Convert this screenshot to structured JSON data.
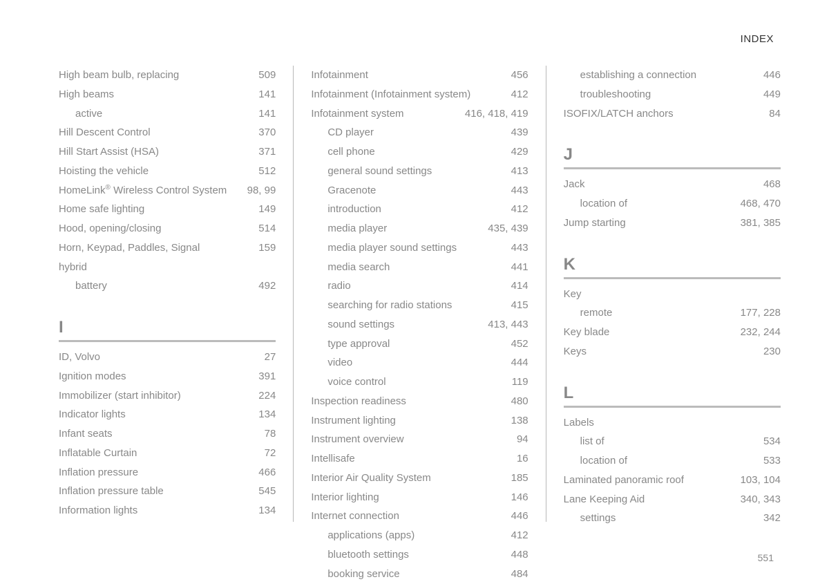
{
  "header": {
    "right_label": "INDEX"
  },
  "page_number": "551",
  "columns": [
    {
      "blocks": [
        {
          "entries": [
            {
              "label": "High beam bulb, replacing",
              "pages": "509"
            },
            {
              "label": "High beams",
              "pages": "141"
            },
            {
              "label": "active",
              "pages": "141",
              "sub": true
            },
            {
              "label": "Hill Descent Control",
              "pages": "370"
            },
            {
              "label": "Hill Start Assist (HSA)",
              "pages": "371"
            },
            {
              "label": "Hoisting the vehicle",
              "pages": "512"
            },
            {
              "label": "HomeLink® Wireless Control System",
              "pages": "98, 99",
              "reg": true
            },
            {
              "label": "Home safe lighting",
              "pages": "149"
            },
            {
              "label": "Hood, opening/closing",
              "pages": "514"
            },
            {
              "label": "Horn, Keypad, Paddles, Signal",
              "pages": "159"
            },
            {
              "label": "hybrid",
              "pages": ""
            },
            {
              "label": "battery",
              "pages": "492",
              "sub": true
            }
          ]
        },
        {
          "letter": "I",
          "entries": [
            {
              "label": "ID, Volvo",
              "pages": "27"
            },
            {
              "label": "Ignition modes",
              "pages": "391"
            },
            {
              "label": "Immobilizer (start inhibitor)",
              "pages": "224"
            },
            {
              "label": "Indicator lights",
              "pages": "134"
            },
            {
              "label": "Infant seats",
              "pages": "78"
            },
            {
              "label": "Inflatable Curtain",
              "pages": "72"
            },
            {
              "label": "Inflation pressure",
              "pages": "466"
            },
            {
              "label": "Inflation pressure table",
              "pages": "545"
            },
            {
              "label": "Information lights",
              "pages": "134"
            }
          ]
        }
      ]
    },
    {
      "blocks": [
        {
          "entries": [
            {
              "label": "Infotainment",
              "pages": "456"
            },
            {
              "label": "Infotainment (Infotainment system)",
              "pages": "412"
            },
            {
              "label": "Infotainment system",
              "pages": "416, 418, 419"
            },
            {
              "label": "CD player",
              "pages": "439",
              "sub": true
            },
            {
              "label": "cell phone",
              "pages": "429",
              "sub": true
            },
            {
              "label": "general sound settings",
              "pages": "413",
              "sub": true
            },
            {
              "label": "Gracenote",
              "pages": "443",
              "sub": true
            },
            {
              "label": "introduction",
              "pages": "412",
              "sub": true
            },
            {
              "label": "media player",
              "pages": "435, 439",
              "sub": true
            },
            {
              "label": "media player sound settings",
              "pages": "443",
              "sub": true
            },
            {
              "label": "media search",
              "pages": "441",
              "sub": true
            },
            {
              "label": "radio",
              "pages": "414",
              "sub": true
            },
            {
              "label": "searching for radio stations",
              "pages": "415",
              "sub": true
            },
            {
              "label": "sound settings",
              "pages": "413, 443",
              "sub": true
            },
            {
              "label": "type approval",
              "pages": "452",
              "sub": true
            },
            {
              "label": "video",
              "pages": "444",
              "sub": true
            },
            {
              "label": "voice control",
              "pages": "119",
              "sub": true
            },
            {
              "label": "Inspection readiness",
              "pages": "480"
            },
            {
              "label": "Instrument lighting",
              "pages": "138"
            },
            {
              "label": "Instrument overview",
              "pages": "94"
            },
            {
              "label": "Intellisafe",
              "pages": "16"
            },
            {
              "label": "Interior Air Quality System",
              "pages": "185"
            },
            {
              "label": "Interior lighting",
              "pages": "146"
            },
            {
              "label": "Internet connection",
              "pages": "446"
            },
            {
              "label": "applications (apps)",
              "pages": "412",
              "sub": true
            },
            {
              "label": "bluetooth settings",
              "pages": "448",
              "sub": true
            },
            {
              "label": "booking service",
              "pages": "484",
              "sub": true
            }
          ]
        }
      ]
    },
    {
      "blocks": [
        {
          "entries": [
            {
              "label": "establishing a connection",
              "pages": "446",
              "sub": true
            },
            {
              "label": "troubleshooting",
              "pages": "449",
              "sub": true
            },
            {
              "label": "ISOFIX/LATCH anchors",
              "pages": "84"
            }
          ]
        },
        {
          "letter": "J",
          "entries": [
            {
              "label": "Jack",
              "pages": "468"
            },
            {
              "label": "location of",
              "pages": "468, 470",
              "sub": true
            },
            {
              "label": "Jump starting",
              "pages": "381, 385"
            }
          ]
        },
        {
          "letter": "K",
          "entries": [
            {
              "label": "Key",
              "pages": ""
            },
            {
              "label": "remote",
              "pages": "177, 228",
              "sub": true
            },
            {
              "label": "Key blade",
              "pages": "232, 244"
            },
            {
              "label": "Keys",
              "pages": "230"
            }
          ]
        },
        {
          "letter": "L",
          "entries": [
            {
              "label": "Labels",
              "pages": ""
            },
            {
              "label": "list of",
              "pages": "534",
              "sub": true
            },
            {
              "label": "location of",
              "pages": "533",
              "sub": true
            },
            {
              "label": "Laminated panoramic roof",
              "pages": "103, 104"
            },
            {
              "label": "Lane Keeping Aid",
              "pages": "340, 343"
            },
            {
              "label": "settings",
              "pages": "342",
              "sub": true
            }
          ]
        }
      ]
    }
  ]
}
